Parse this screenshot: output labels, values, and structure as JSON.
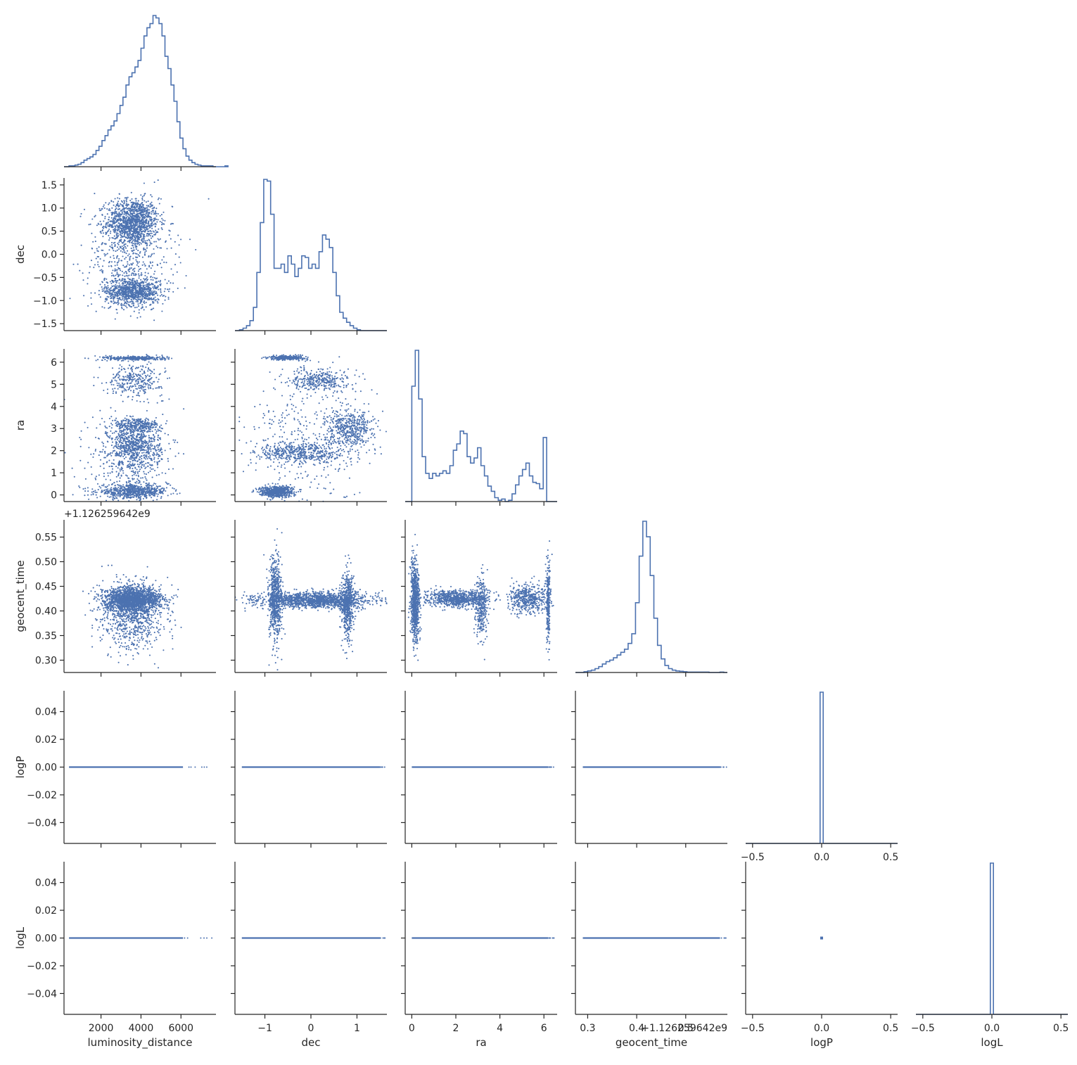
{
  "chart_data": {
    "type": "pairplot",
    "variables": [
      "luminosity_distance",
      "dec",
      "ra",
      "geocent_time",
      "logP",
      "logL"
    ],
    "offset_label": "+1.126259642e9",
    "marker_color": "#4c72b0",
    "axes": {
      "luminosity_distance": {
        "label": "luminosity_distance",
        "range": [
          150,
          7750
        ],
        "ticks": [
          2000,
          4000,
          6000
        ],
        "tick_labels": [
          "2000",
          "4000",
          "6000"
        ]
      },
      "dec": {
        "label": "dec",
        "range": [
          -1.65,
          1.65
        ],
        "ticks": [
          -1.5,
          -1.0,
          -0.5,
          0.0,
          0.5,
          1.0,
          1.5
        ],
        "tick_labels": [
          "−1.5",
          "−1.0",
          "−0.5",
          "0.0",
          "0.5",
          "1.0",
          "1.5"
        ],
        "x_ticks": [
          -1,
          0,
          1
        ],
        "x_tick_labels": [
          "−1",
          "0",
          "1"
        ]
      },
      "ra": {
        "label": "ra",
        "range": [
          -0.3,
          6.6
        ],
        "ticks": [
          0,
          1,
          2,
          3,
          4,
          5,
          6
        ],
        "tick_labels": [
          "0",
          "1",
          "2",
          "3",
          "4",
          "5",
          "6"
        ],
        "x_ticks": [
          0,
          2,
          4,
          6
        ],
        "x_tick_labels": [
          "0",
          "2",
          "4",
          "6"
        ]
      },
      "geocent_time": {
        "label": "geocent_time",
        "range": [
          0.275,
          0.585
        ],
        "ticks": [
          0.3,
          0.35,
          0.4,
          0.45,
          0.5,
          0.55
        ],
        "tick_labels": [
          "0.30",
          "0.35",
          "0.40",
          "0.45",
          "0.50",
          "0.55"
        ],
        "x_ticks": [
          0.3,
          0.4,
          0.5
        ],
        "x_tick_labels": [
          "0.3",
          "0.4",
          "0.5"
        ]
      },
      "logP": {
        "label": "logP",
        "range": [
          -0.055,
          0.055
        ],
        "ticks": [
          -0.04,
          -0.02,
          0.0,
          0.02,
          0.04
        ],
        "tick_labels": [
          "−0.04",
          "−0.02",
          "0.00",
          "0.02",
          "0.04"
        ],
        "x_range": [
          -0.55,
          0.55
        ],
        "x_ticks": [
          -0.5,
          0.0,
          0.5
        ],
        "x_tick_labels": [
          "−0.5",
          "0.0",
          "0.5"
        ]
      },
      "logL": {
        "label": "logL",
        "range": [
          -0.055,
          0.055
        ],
        "ticks": [
          -0.04,
          -0.02,
          0.0,
          0.02,
          0.04
        ],
        "tick_labels": [
          "−0.04",
          "−0.02",
          "0.00",
          "0.02",
          "0.04"
        ],
        "x_range": [
          -0.55,
          0.55
        ],
        "x_ticks": [
          -0.5,
          0.0,
          0.5
        ],
        "x_tick_labels": [
          "−0.5",
          "0.0",
          "0.5"
        ]
      }
    },
    "histograms": {
      "luminosity_distance": {
        "bin_start": 400,
        "bin_width": 150,
        "counts": [
          1,
          1,
          2,
          3,
          5,
          8,
          10,
          12,
          15,
          20,
          25,
          32,
          38,
          45,
          50,
          56,
          65,
          75,
          85,
          100,
          110,
          115,
          122,
          130,
          145,
          160,
          170,
          175,
          185,
          182,
          175,
          160,
          135,
          120,
          100,
          80,
          55,
          35,
          22,
          13,
          8,
          5,
          3,
          2,
          1,
          1,
          1,
          1,
          0,
          0,
          0,
          0,
          1
        ]
      },
      "dec": {
        "bin_start": -1.55,
        "bin_width": 0.075,
        "counts": [
          1,
          3,
          6,
          12,
          28,
          70,
          130,
          182,
          180,
          140,
          75,
          75,
          80,
          70,
          90,
          80,
          65,
          75,
          90,
          88,
          75,
          80,
          75,
          95,
          115,
          110,
          100,
          70,
          42,
          22,
          15,
          10,
          6,
          3,
          1
        ]
      },
      "ra": {
        "bin_start": 0.0,
        "bin_width": 0.157,
        "counts": [
          90,
          118,
          80,
          35,
          22,
          18,
          22,
          20,
          22,
          24,
          22,
          28,
          40,
          45,
          55,
          53,
          35,
          30,
          34,
          42,
          28,
          20,
          12,
          8,
          3,
          1,
          2,
          0,
          1,
          6,
          13,
          20,
          25,
          30,
          20,
          15,
          14,
          10,
          50
        ]
      },
      "geocent_time": {
        "bin_start": 0.285,
        "bin_width": 0.0075,
        "counts": [
          0,
          2,
          4,
          6,
          10,
          15,
          22,
          28,
          32,
          38,
          45,
          52,
          60,
          75,
          100,
          180,
          300,
          390,
          350,
          250,
          140,
          70,
          35,
          18,
          10,
          6,
          4,
          3,
          2,
          1,
          1,
          1,
          1,
          1,
          1,
          0,
          0,
          0,
          1
        ]
      },
      "logP": {
        "values": [
          0.0
        ],
        "counts": [
          1
        ]
      },
      "logL": {
        "values": [
          0.0
        ],
        "counts": [
          1
        ]
      }
    },
    "scatter_clusters": {
      "dec_vs_luminosity_distance": [
        {
          "x_mean": 3600,
          "x_sd": 650,
          "y_mean": 0.7,
          "y_sd": 0.25,
          "weight": 0.45
        },
        {
          "x_mean": 3600,
          "x_sd": 700,
          "y_mean": -0.8,
          "y_sd": 0.15,
          "weight": 0.35
        },
        {
          "x_mean": 3400,
          "x_sd": 1100,
          "y_mean": 0.0,
          "y_sd": 0.55,
          "weight": 0.2
        }
      ],
      "ra_vs_luminosity_distance": [
        {
          "x_mean": 3600,
          "x_sd": 900,
          "y_mean": 0.15,
          "y_sd": 0.15,
          "weight": 0.25
        },
        {
          "x_mean": 3700,
          "x_sd": 650,
          "y_mean": 2.2,
          "y_sd": 0.5,
          "weight": 0.28
        },
        {
          "x_mean": 3800,
          "x_sd": 600,
          "y_mean": 3.15,
          "y_sd": 0.15,
          "weight": 0.1
        },
        {
          "x_mean": 3700,
          "x_sd": 700,
          "y_mean": 5.2,
          "y_sd": 0.35,
          "weight": 0.12
        },
        {
          "x_mean": 3700,
          "x_sd": 800,
          "y_mean": 6.18,
          "y_sd": 0.05,
          "weight": 0.12
        },
        {
          "x_mean": 3400,
          "x_sd": 1000,
          "y_mean": 1.5,
          "y_sd": 1.3,
          "weight": 0.13
        }
      ],
      "ra_vs_dec": [
        {
          "x_mean": -0.75,
          "x_sd": 0.18,
          "y_mean": 0.15,
          "y_sd": 0.12,
          "weight": 0.25
        },
        {
          "x_mean": -0.2,
          "x_sd": 0.5,
          "y_mean": 1.9,
          "y_sd": 0.25,
          "weight": 0.18
        },
        {
          "x_mean": 0.85,
          "x_sd": 0.25,
          "y_mean": 3.0,
          "y_sd": 0.4,
          "weight": 0.18
        },
        {
          "x_mean": 0.2,
          "x_sd": 0.3,
          "y_mean": 5.2,
          "y_sd": 0.25,
          "weight": 0.12
        },
        {
          "x_mean": -0.5,
          "x_sd": 0.2,
          "y_mean": 6.2,
          "y_sd": 0.05,
          "weight": 0.12
        },
        {
          "x_mean": 0.0,
          "x_sd": 0.7,
          "y_mean": 2.5,
          "y_sd": 1.6,
          "weight": 0.15
        }
      ],
      "geocent_time_vs_luminosity_distance": [
        {
          "x_mean": 3600,
          "x_sd": 700,
          "y_mean": 0.423,
          "y_sd": 0.012,
          "weight": 0.7
        },
        {
          "x_mean": 3600,
          "x_sd": 800,
          "y_mean": 0.39,
          "y_sd": 0.035,
          "weight": 0.3
        }
      ],
      "geocent_time_vs_dec": [
        {
          "x_mean": 0.1,
          "x_sd": 0.6,
          "y_mean": 0.422,
          "y_sd": 0.008,
          "weight": 0.55
        },
        {
          "x_mean": -0.78,
          "x_sd": 0.07,
          "y_mean": 0.42,
          "y_sd": 0.045,
          "weight": 0.25
        },
        {
          "x_mean": 0.8,
          "x_sd": 0.07,
          "y_mean": 0.41,
          "y_sd": 0.035,
          "weight": 0.2
        }
      ],
      "geocent_time_vs_ra": [
        {
          "x_mean": 0.15,
          "x_sd": 0.1,
          "y_mean": 0.42,
          "y_sd": 0.04,
          "weight": 0.3
        },
        {
          "x_mean": 2.0,
          "x_sd": 0.7,
          "y_mean": 0.425,
          "y_sd": 0.008,
          "weight": 0.3
        },
        {
          "x_mean": 3.15,
          "x_sd": 0.15,
          "y_mean": 0.41,
          "y_sd": 0.03,
          "weight": 0.12
        },
        {
          "x_mean": 5.3,
          "x_sd": 0.45,
          "y_mean": 0.425,
          "y_sd": 0.015,
          "weight": 0.18
        },
        {
          "x_mean": 6.2,
          "x_sd": 0.05,
          "y_mean": 0.42,
          "y_sd": 0.04,
          "weight": 0.1
        }
      ]
    },
    "degenerate_rows": {
      "logP": {
        "y": 0.0,
        "x_extent": {
          "luminosity_distance": [
            400,
            6100
          ],
          "dec": [
            -1.5,
            1.5
          ],
          "ra": [
            0.0,
            6.2
          ],
          "geocent_time": [
            0.29,
            0.57
          ]
        }
      },
      "logL": {
        "y": 0.0,
        "x_extent": {
          "luminosity_distance": [
            400,
            6100
          ],
          "dec": [
            -1.5,
            1.5
          ],
          "ra": [
            0.0,
            6.2
          ],
          "geocent_time": [
            0.29,
            0.57
          ]
        }
      }
    }
  }
}
